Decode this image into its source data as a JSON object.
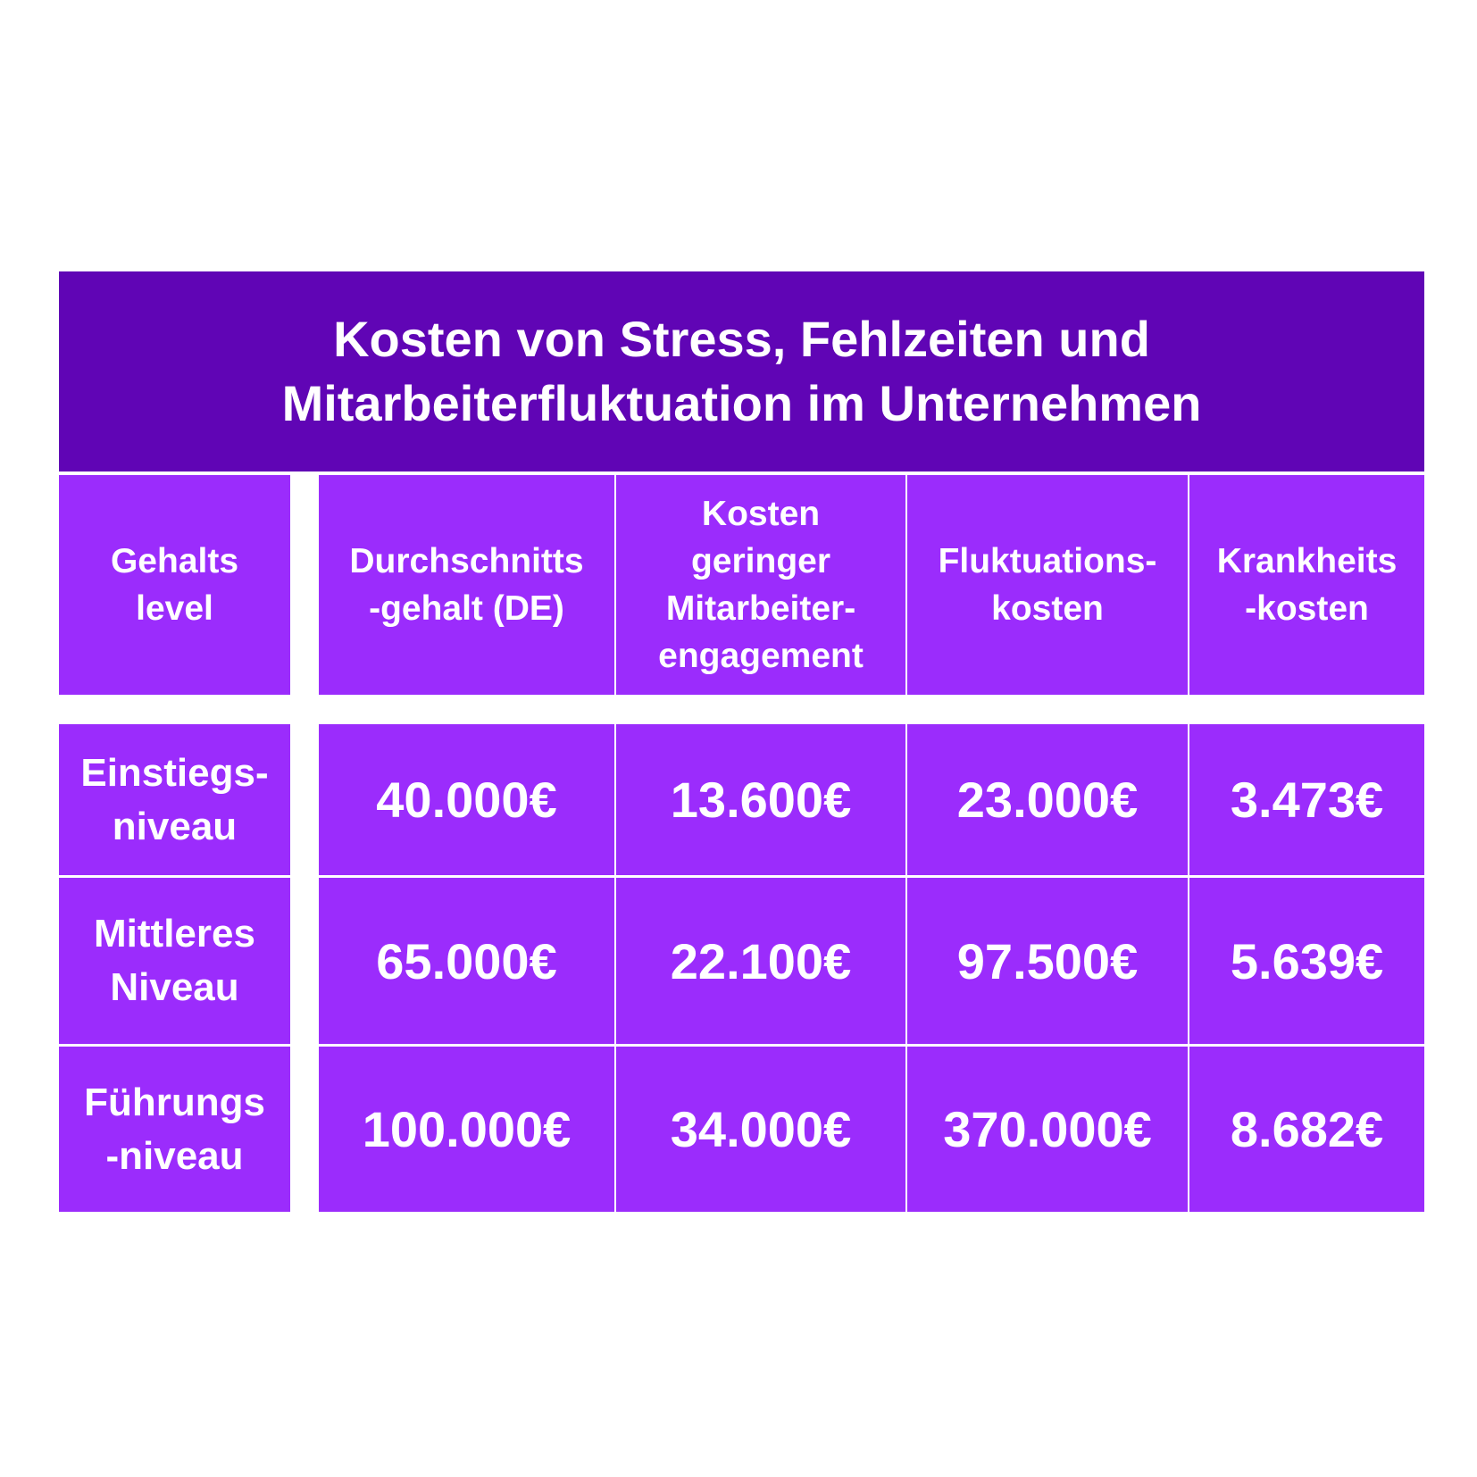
{
  "title": "Kosten von Stress, Fehlzeiten und\nMitarbeiterfluktuation im Unternehmen",
  "colors": {
    "title_bg": "#6005b5",
    "cell_bg": "#9b2cfc",
    "text": "#ffffff"
  },
  "headers": [
    "Gehalts\nlevel",
    "Durchschnitts\n-gehalt (DE)",
    "Kosten\ngeringer\nMitarbeiter-\nengagement",
    "Fluktuations-\nkosten",
    "Krankheits\n-kosten"
  ],
  "rows": [
    {
      "level": "Einstiegs-\nniveau",
      "values": [
        "40.000€",
        "13.600€",
        "23.000€",
        "3.473€"
      ]
    },
    {
      "level": "Mittleres\nNiveau",
      "values": [
        "65.000€",
        "22.100€",
        "97.500€",
        "5.639€"
      ]
    },
    {
      "level": "Führungs\n-niveau",
      "values": [
        "100.000€",
        "34.000€",
        "370.000€",
        "8.682€"
      ]
    }
  ]
}
